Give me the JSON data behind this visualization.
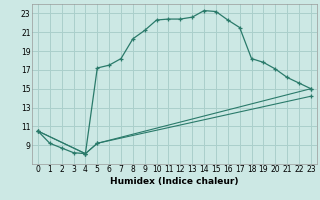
{
  "xlabel": "Humidex (Indice chaleur)",
  "bg_color": "#cce8e4",
  "grid_color": "#aacfcb",
  "line_color": "#2a7a6a",
  "xlim": [
    -0.5,
    23.5
  ],
  "ylim": [
    7,
    24
  ],
  "xticks": [
    0,
    1,
    2,
    3,
    4,
    5,
    6,
    7,
    8,
    9,
    10,
    11,
    12,
    13,
    14,
    15,
    16,
    17,
    18,
    19,
    20,
    21,
    22,
    23
  ],
  "yticks": [
    9,
    11,
    13,
    15,
    17,
    19,
    21,
    23
  ],
  "line1_x": [
    0,
    1,
    2,
    3,
    4,
    5,
    6,
    7,
    8,
    9,
    10,
    11,
    12,
    13,
    14,
    15,
    16,
    17,
    18,
    19,
    20,
    21,
    22,
    23
  ],
  "line1_y": [
    10.5,
    9.2,
    8.7,
    8.2,
    8.1,
    17.2,
    17.5,
    18.2,
    20.3,
    21.2,
    22.3,
    22.4,
    22.4,
    22.6,
    23.3,
    23.2,
    22.3,
    21.5,
    18.2,
    17.8,
    17.1,
    16.2,
    15.6,
    15.0
  ],
  "line2_x": [
    0,
    4,
    5,
    23
  ],
  "line2_y": [
    10.5,
    8.1,
    9.2,
    15.0
  ],
  "line3_x": [
    0,
    4,
    5,
    23
  ],
  "line3_y": [
    10.5,
    8.1,
    9.2,
    14.2
  ]
}
